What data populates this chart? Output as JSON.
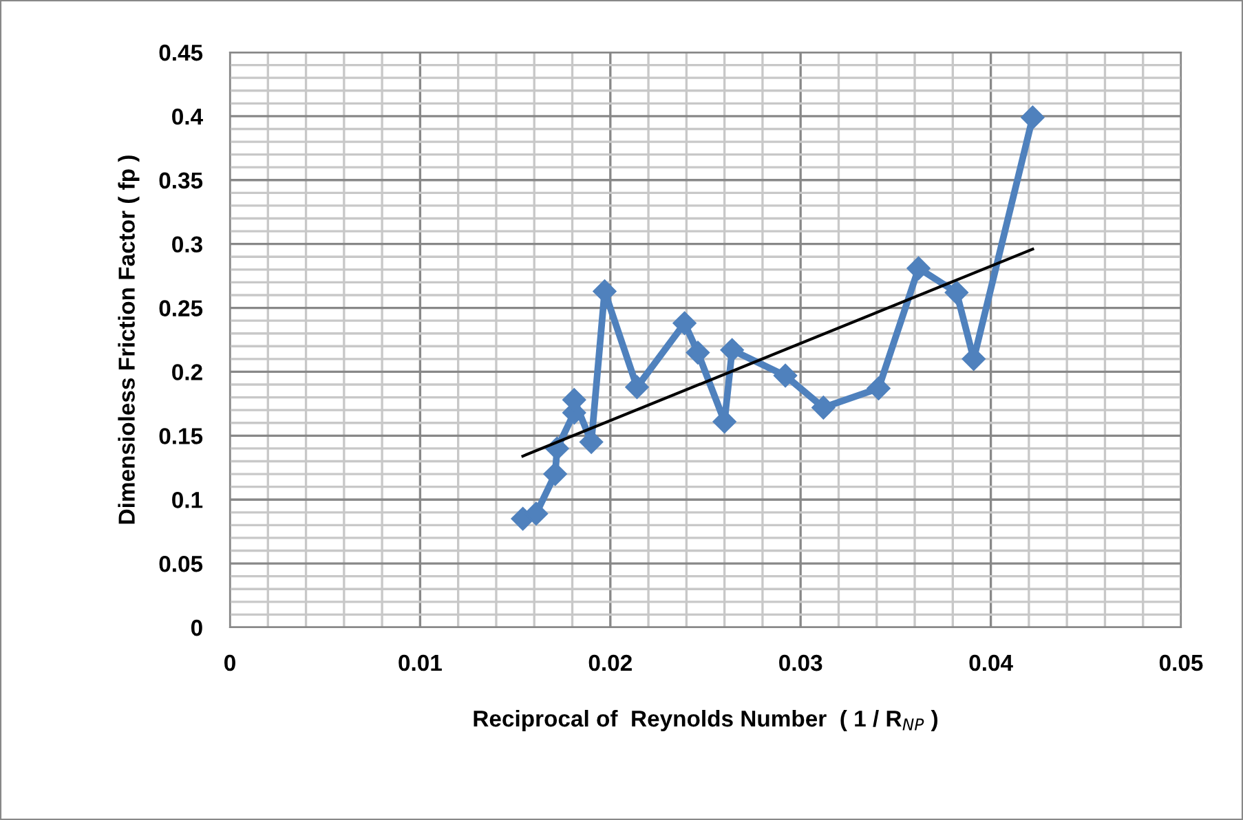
{
  "chart_data": {
    "type": "line",
    "xlabel": "Reciprocal of  Reynolds Number  ( 1 / R$_{NP}$ )",
    "ylabel": "Dimensioless Friction Factor ( fp )",
    "series": [
      {
        "color": "#4f81bd",
        "marker": "diamond",
        "x": [
          0.0154,
          0.0161,
          0.0171,
          0.0172,
          0.0181,
          0.0181,
          0.019,
          0.0197,
          0.0214,
          0.0239,
          0.0246,
          0.026,
          0.0264,
          0.0292,
          0.0312,
          0.0341,
          0.0362,
          0.0382,
          0.0391,
          0.0422
        ],
        "values": [
          0.085,
          0.089,
          0.12,
          0.14,
          0.168,
          0.178,
          0.145,
          0.263,
          0.188,
          0.238,
          0.215,
          0.161,
          0.217,
          0.197,
          0.172,
          0.187,
          0.281,
          0.262,
          0.21,
          0.399
        ]
      },
      {
        "color": "#000000",
        "marker": "none",
        "x": [
          0.0154,
          0.0422
        ],
        "values": [
          0.134,
          0.296
        ]
      }
    ],
    "xlim": [
      0,
      0.05
    ],
    "xticks": [
      0,
      0.01,
      0.02,
      0.03,
      0.04,
      0.05
    ],
    "ylim": [
      0,
      0.45
    ],
    "yticks": [
      0,
      0.05,
      0.1,
      0.15,
      0.2,
      0.25,
      0.3,
      0.35,
      0.4,
      0.45
    ],
    "grid": true,
    "legend": false
  }
}
